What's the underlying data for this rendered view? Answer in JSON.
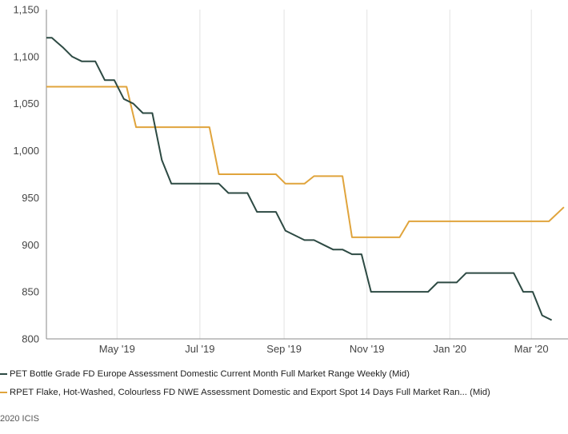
{
  "chart_data": {
    "type": "line",
    "title": "",
    "xlabel": "",
    "ylabel": "",
    "ylim": [
      800,
      1150
    ],
    "xlim": [
      "2019-03-10",
      "2020-03-28"
    ],
    "yticks": [
      800,
      850,
      900,
      950,
      1000,
      1050,
      1100,
      1150
    ],
    "ytick_labels": [
      "800",
      "850",
      "900",
      "950",
      "1,000",
      "1,050",
      "1,100",
      "1,150"
    ],
    "xticks": [
      {
        "date": "2019-05-01",
        "label": "May '19"
      },
      {
        "date": "2019-07-01",
        "label": "Jul '19"
      },
      {
        "date": "2019-09-01",
        "label": "Sep '19"
      },
      {
        "date": "2019-11-01",
        "label": "Nov '19"
      },
      {
        "date": "2020-01-01",
        "label": "Jan '20"
      },
      {
        "date": "2020-03-01",
        "label": "Mar '20"
      }
    ],
    "grid": "vertical",
    "legend_position": "bottom",
    "series": [
      {
        "name": "PET Bottle Grade FD Europe Assessment Domestic Current Month Full Market Range Weekly (Mid)",
        "color": "#2d4a43",
        "points": [
          [
            "2019-03-10",
            1120
          ],
          [
            "2019-03-14",
            1120
          ],
          [
            "2019-03-18",
            1115
          ],
          [
            "2019-03-22",
            1110
          ],
          [
            "2019-03-29",
            1100
          ],
          [
            "2019-04-05",
            1095
          ],
          [
            "2019-04-15",
            1095
          ],
          [
            "2019-04-22",
            1075
          ],
          [
            "2019-04-29",
            1075
          ],
          [
            "2019-05-06",
            1055
          ],
          [
            "2019-05-13",
            1050
          ],
          [
            "2019-05-20",
            1040
          ],
          [
            "2019-05-27",
            1040
          ],
          [
            "2019-06-03",
            990
          ],
          [
            "2019-06-10",
            965
          ],
          [
            "2019-06-17",
            965
          ],
          [
            "2019-07-01",
            965
          ],
          [
            "2019-07-15",
            965
          ],
          [
            "2019-07-22",
            955
          ],
          [
            "2019-08-05",
            955
          ],
          [
            "2019-08-12",
            935
          ],
          [
            "2019-08-26",
            935
          ],
          [
            "2019-09-02",
            915
          ],
          [
            "2019-09-09",
            910
          ],
          [
            "2019-09-16",
            905
          ],
          [
            "2019-09-23",
            905
          ],
          [
            "2019-09-30",
            900
          ],
          [
            "2019-10-07",
            895
          ],
          [
            "2019-10-14",
            895
          ],
          [
            "2019-10-21",
            890
          ],
          [
            "2019-10-28",
            890
          ],
          [
            "2019-11-04",
            850
          ],
          [
            "2019-11-18",
            850
          ],
          [
            "2019-12-02",
            850
          ],
          [
            "2019-12-16",
            850
          ],
          [
            "2019-12-23",
            860
          ],
          [
            "2020-01-06",
            860
          ],
          [
            "2020-01-13",
            870
          ],
          [
            "2020-01-27",
            870
          ],
          [
            "2020-02-10",
            870
          ],
          [
            "2020-02-17",
            870
          ],
          [
            "2020-02-24",
            850
          ],
          [
            "2020-03-02",
            850
          ],
          [
            "2020-03-09",
            825
          ],
          [
            "2020-03-16",
            820
          ]
        ]
      },
      {
        "name": "RPET Flake, Hot-Washed, Colourless FD NWE Assessment Domestic and Export Spot 14 Days Full Market Ran... (Mid)",
        "color": "#e0a43c",
        "points": [
          [
            "2019-03-10",
            1068
          ],
          [
            "2019-04-01",
            1068
          ],
          [
            "2019-05-01",
            1068
          ],
          [
            "2019-05-08",
            1068
          ],
          [
            "2019-05-15",
            1025
          ],
          [
            "2019-06-01",
            1025
          ],
          [
            "2019-07-01",
            1025
          ],
          [
            "2019-07-08",
            1025
          ],
          [
            "2019-07-15",
            975
          ],
          [
            "2019-08-15",
            975
          ],
          [
            "2019-08-26",
            975
          ],
          [
            "2019-09-02",
            965
          ],
          [
            "2019-09-16",
            965
          ],
          [
            "2019-09-23",
            973
          ],
          [
            "2019-10-07",
            973
          ],
          [
            "2019-10-14",
            973
          ],
          [
            "2019-10-21",
            908
          ],
          [
            "2019-11-01",
            908
          ],
          [
            "2019-11-25",
            908
          ],
          [
            "2019-12-02",
            925
          ],
          [
            "2020-01-01",
            925
          ],
          [
            "2020-02-01",
            925
          ],
          [
            "2020-03-09",
            925
          ],
          [
            "2020-03-14",
            925
          ],
          [
            "2020-03-25",
            940
          ]
        ]
      }
    ]
  },
  "copyright": "2020 ICIS"
}
